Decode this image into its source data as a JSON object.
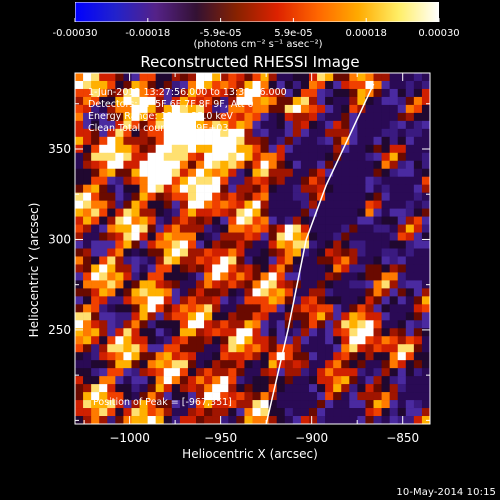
{
  "colorbar": {
    "ticks": [
      "-0.00030",
      "-0.00018",
      "-5.9e-05",
      "5.9e-05",
      "0.00018",
      "0.00030"
    ],
    "label": "(photons cm⁻² s⁻¹ asec⁻²)",
    "colors": [
      "#0000ff",
      "#2222cc",
      "#552288",
      "#331133",
      "#882200",
      "#dd2200",
      "#ff6600",
      "#ffaa00",
      "#ffee66",
      "#ffffff"
    ]
  },
  "footer": {
    "date": "10-May-2014 10:15"
  },
  "chart_data": {
    "type": "heatmap",
    "title": "Reconstructed RHESSI Image",
    "xlabel": "Heliocentric X (arcsec)",
    "ylabel": "Heliocentric Y (arcsec)",
    "xlim": [
      -1030,
      -835
    ],
    "ylim": [
      198,
      392
    ],
    "xticks": [
      -1000,
      -950,
      -900,
      -850
    ],
    "yticks": [
      250,
      300,
      350
    ],
    "xtick_labels": [
      "−1000",
      "−950",
      "−900",
      "−850"
    ],
    "ytick_labels": [
      "250",
      "300",
      "350"
    ],
    "annotations": [
      "1-Jun-2012 13:27:56.000 to 13:32:06.000",
      "Detectors: 3F 5F 6F 7F 8F 9F, Att 0",
      "Energy Range: 12.0 - 25.0 keV",
      "Clean    Total counts: 2.89E+03"
    ],
    "peak_label": "Position of Peak = [-967,351]",
    "peak": [
      -967,
      351
    ],
    "limb_curve": [
      [
        -925,
        198
      ],
      [
        -913,
        250
      ],
      [
        -903,
        300
      ],
      [
        -892,
        330
      ],
      [
        -878,
        360
      ],
      [
        -866,
        386
      ]
    ],
    "value_range": [
      -0.0003,
      0.0003
    ]
  }
}
